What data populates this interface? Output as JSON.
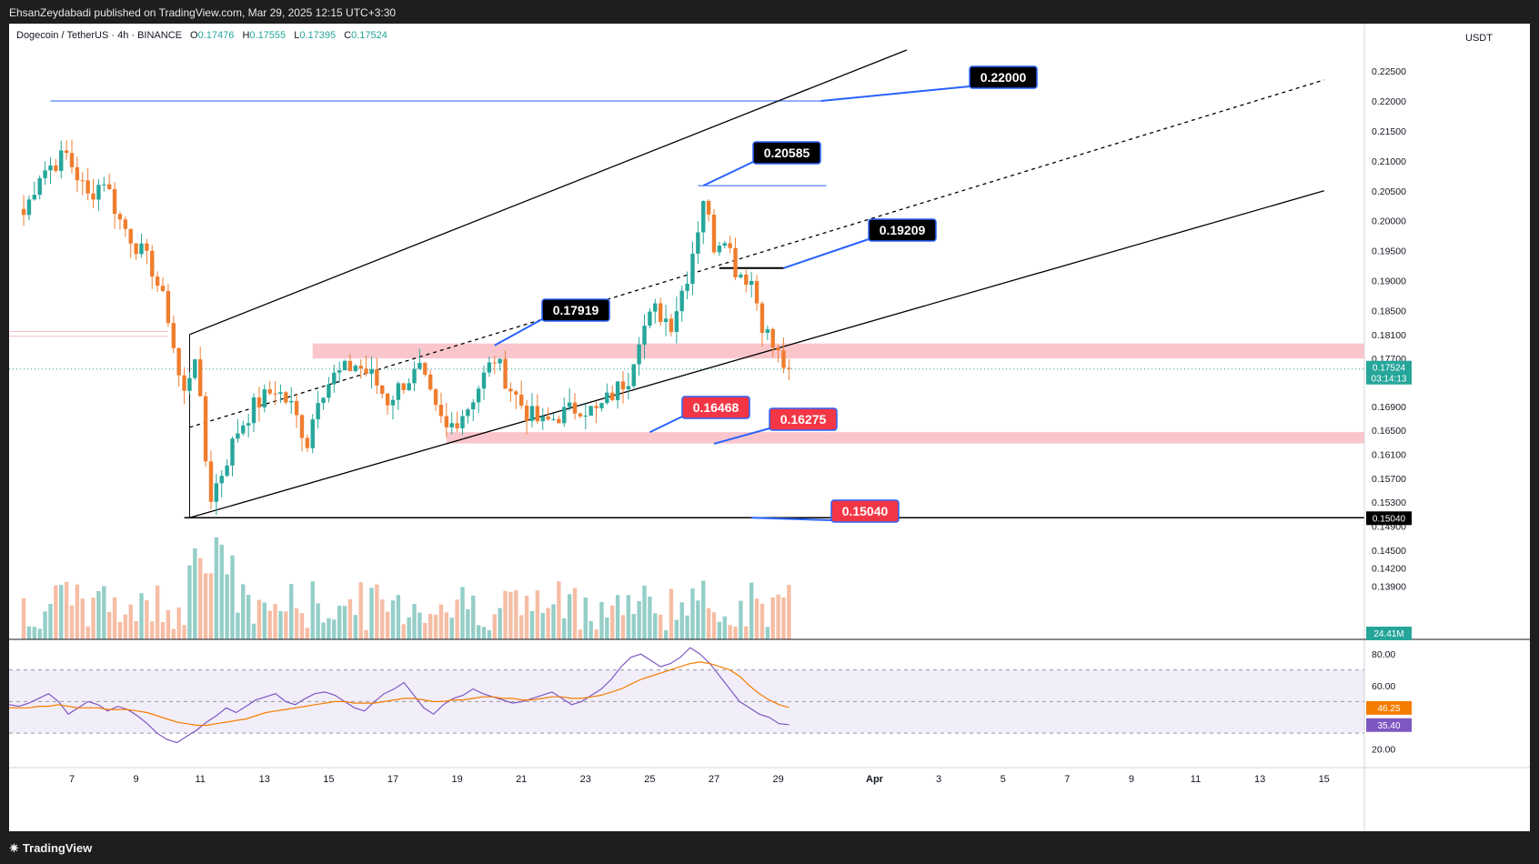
{
  "header": {
    "published_line": "EhsanZeydabadi published on TradingView.com, Mar 29, 2025 12:15 UTC+3:30"
  },
  "symbol_line": {
    "name": "Dogecoin / TetherUS · 4h · BINANCE",
    "o_label": "O",
    "o_value": "0.17476",
    "h_label": "H",
    "h_value": "0.17555",
    "l_label": "L",
    "l_value": "0.17395",
    "c_label": "C",
    "c_value": "0.17524"
  },
  "currency": "USDT",
  "footer": {
    "brand": "TradingView",
    "brand_icon": "tradingview-logo-icon"
  },
  "colors": {
    "up": "#26a69a",
    "down": "#ef7d2e",
    "zone": "#f8bcc2",
    "level_line": "#2962ff",
    "rsi_line": "#7e57c2",
    "rsi_ma": "#f57c00",
    "label_dark": "#000000",
    "label_red": "#f23645"
  },
  "chart_data": [
    {
      "type": "candlestick",
      "title": "Dogecoin / TetherUS · 4h · BINANCE",
      "y_axis": {
        "ticks": [
          "0.22500",
          "0.22000",
          "0.21500",
          "0.21000",
          "0.20500",
          "0.20000",
          "0.19500",
          "0.19000",
          "0.18500",
          "0.18100",
          "0.17700",
          "0.16900",
          "0.16500",
          "0.16100",
          "0.15700",
          "0.15300",
          "0.14900",
          "0.14500",
          "0.14200",
          "0.13900"
        ],
        "range": [
          0.1345,
          0.2285
        ]
      },
      "x_axis": {
        "ticks": [
          "7",
          "9",
          "11",
          "13",
          "15",
          "17",
          "19",
          "21",
          "23",
          "25",
          "27",
          "29",
          "Apr",
          "3",
          "5",
          "7",
          "9",
          "11",
          "13",
          "15"
        ]
      },
      "last_price": {
        "value": "0.17524",
        "countdown": "03:14:13"
      },
      "price_axis_badges": [
        {
          "value": "0.15040"
        }
      ],
      "volume_badge": "24.41M",
      "annotations": [
        {
          "text": "0.22000",
          "style": "dark",
          "level": 0.22
        },
        {
          "text": "0.20585",
          "style": "dark",
          "level": 0.20585
        },
        {
          "text": "0.19209",
          "style": "dark",
          "level": 0.19209
        },
        {
          "text": "0.17919",
          "style": "dark",
          "level": 0.17919
        },
        {
          "text": "0.16468",
          "style": "red",
          "level": 0.16468
        },
        {
          "text": "0.16275",
          "style": "red",
          "level": 0.16275
        },
        {
          "text": "0.15040",
          "style": "red",
          "level": 0.1504
        }
      ],
      "zones": [
        {
          "from": 0.177,
          "to": 0.1795
        },
        {
          "from": 0.1628,
          "to": 0.1647
        }
      ],
      "horizontal_levels": [
        0.22,
        0.20585,
        0.19209,
        0.1504,
        0.1815,
        0.1807
      ],
      "channel": {
        "upper": [
          [
            "Mar 10 16:00",
            0.181
          ],
          [
            "Apr 2",
            0.2285
          ]
        ],
        "middle": [
          [
            "Mar 10 16:00",
            0.1655
          ],
          [
            "Apr 15",
            0.2235
          ]
        ],
        "lower": [
          [
            "Mar 10 16:00",
            0.1504
          ],
          [
            "Apr 15",
            0.205
          ]
        ]
      },
      "ohlc_anchor_closes": [
        {
          "t": "Mar 5 12:00",
          "c": 0.201
        },
        {
          "t": "Mar 6",
          "c": 0.208
        },
        {
          "t": "Mar 6 20:00",
          "c": 0.211
        },
        {
          "t": "Mar 7 12:00",
          "c": 0.204
        },
        {
          "t": "Mar 8",
          "c": 0.207
        },
        {
          "t": "Mar 8 12:00",
          "c": 0.2
        },
        {
          "t": "Mar 9",
          "c": 0.196
        },
        {
          "t": "Mar 9 12:00",
          "c": 0.192
        },
        {
          "t": "Mar 10",
          "c": 0.184
        },
        {
          "t": "Mar 10 08:00",
          "c": 0.174
        },
        {
          "t": "Mar 10 12:00",
          "c": 0.171
        },
        {
          "t": "Mar 10 20:00",
          "c": 0.178
        },
        {
          "t": "Mar 11 04:00",
          "c": 0.16
        },
        {
          "t": "Mar 11 08:00",
          "c": 0.154
        },
        {
          "t": "Mar 11 16:00",
          "c": 0.158
        },
        {
          "t": "Mar 12 04:00",
          "c": 0.165
        },
        {
          "t": "Mar 12 16:00",
          "c": 0.169
        },
        {
          "t": "Mar 13 08:00",
          "c": 0.172
        },
        {
          "t": "Mar 13 20:00",
          "c": 0.169
        },
        {
          "t": "Mar 14 08:00",
          "c": 0.163
        },
        {
          "t": "Mar 14 16:00",
          "c": 0.171
        },
        {
          "t": "Mar 15 04:00",
          "c": 0.174
        },
        {
          "t": "Mar 15 20:00",
          "c": 0.176
        },
        {
          "t": "Mar 16 08:00",
          "c": 0.174
        },
        {
          "t": "Mar 16 20:00",
          "c": 0.17
        },
        {
          "t": "Mar 17 08:00",
          "c": 0.173
        },
        {
          "t": "Mar 17 20:00",
          "c": 0.175
        },
        {
          "t": "Mar 18 08:00",
          "c": 0.168
        },
        {
          "t": "Mar 18 16:00",
          "c": 0.165
        },
        {
          "t": "Mar 19 08:00",
          "c": 0.169
        },
        {
          "t": "Mar 19 20:00",
          "c": 0.174
        },
        {
          "t": "Mar 20 04:00",
          "c": 0.177
        },
        {
          "t": "Mar 20 16:00",
          "c": 0.172
        },
        {
          "t": "Mar 21 04:00",
          "c": 0.168
        },
        {
          "t": "Mar 21 16:00",
          "c": 0.166
        },
        {
          "t": "Mar 22 04:00",
          "c": 0.1675
        },
        {
          "t": "Mar 22 20:00",
          "c": 0.169
        },
        {
          "t": "Mar 23 08:00",
          "c": 0.168
        },
        {
          "t": "Mar 23 20:00",
          "c": 0.171
        },
        {
          "t": "Mar 24 08:00",
          "c": 0.174
        },
        {
          "t": "Mar 24 16:00",
          "c": 0.181
        },
        {
          "t": "Mar 25 04:00",
          "c": 0.185
        },
        {
          "t": "Mar 25 16:00",
          "c": 0.183
        },
        {
          "t": "Mar 26 04:00",
          "c": 0.191
        },
        {
          "t": "Mar 26 12:00",
          "c": 0.199
        },
        {
          "t": "Mar 26 16:00",
          "c": 0.204
        },
        {
          "t": "Mar 27 00:00",
          "c": 0.196
        },
        {
          "t": "Mar 27 08:00",
          "c": 0.198
        },
        {
          "t": "Mar 27 16:00",
          "c": 0.192
        },
        {
          "t": "Mar 28 04:00",
          "c": 0.19
        },
        {
          "t": "Mar 28 12:00",
          "c": 0.183
        },
        {
          "t": "Mar 28 20:00",
          "c": 0.179
        },
        {
          "t": "Mar 29 04:00",
          "c": 0.176
        },
        {
          "t": "Mar 29 08:00",
          "c": 0.17524
        }
      ]
    },
    {
      "type": "line",
      "title": "",
      "y_axis": {
        "ticks": [
          "80.00",
          "60.00",
          "20.00"
        ],
        "range": [
          14,
          87
        ]
      },
      "bands": [
        70,
        50,
        30
      ],
      "series": [
        {
          "values": [
            48,
            47,
            49,
            52,
            55,
            50,
            42,
            46,
            50,
            48,
            44,
            47,
            45,
            41,
            36,
            30,
            26,
            24,
            28,
            32,
            37,
            41,
            46,
            43,
            47,
            51,
            53,
            55,
            50,
            48,
            52,
            55,
            56,
            54,
            50,
            46,
            44,
            50,
            55,
            58,
            62,
            54,
            46,
            42,
            48,
            52,
            54,
            58,
            55,
            53,
            51,
            49,
            50,
            52,
            54,
            56,
            52,
            48,
            50,
            54,
            58,
            64,
            72,
            78,
            80,
            76,
            72,
            74,
            78,
            84,
            80,
            74,
            66,
            58,
            50,
            46,
            42,
            40,
            36,
            35.4
          ]
        },
        {
          "values": [
            46,
            46,
            46,
            47,
            47,
            48,
            47,
            46,
            46,
            46,
            45,
            45,
            45,
            44,
            43,
            41,
            39,
            37,
            36,
            35,
            35,
            36,
            37,
            38,
            39,
            41,
            43,
            44,
            45,
            46,
            47,
            48,
            49,
            50,
            50,
            49,
            49,
            49,
            50,
            51,
            52,
            52,
            51,
            50,
            50,
            51,
            51,
            52,
            53,
            53,
            52,
            52,
            51,
            51,
            52,
            53,
            53,
            52,
            52,
            53,
            54,
            56,
            58,
            61,
            64,
            66,
            68,
            70,
            72,
            74,
            75,
            74,
            72,
            70,
            66,
            60,
            55,
            51,
            48,
            46.25
          ]
        }
      ],
      "last_values": {
        "ma": "46.25",
        "rsi": "35.40"
      }
    }
  ]
}
